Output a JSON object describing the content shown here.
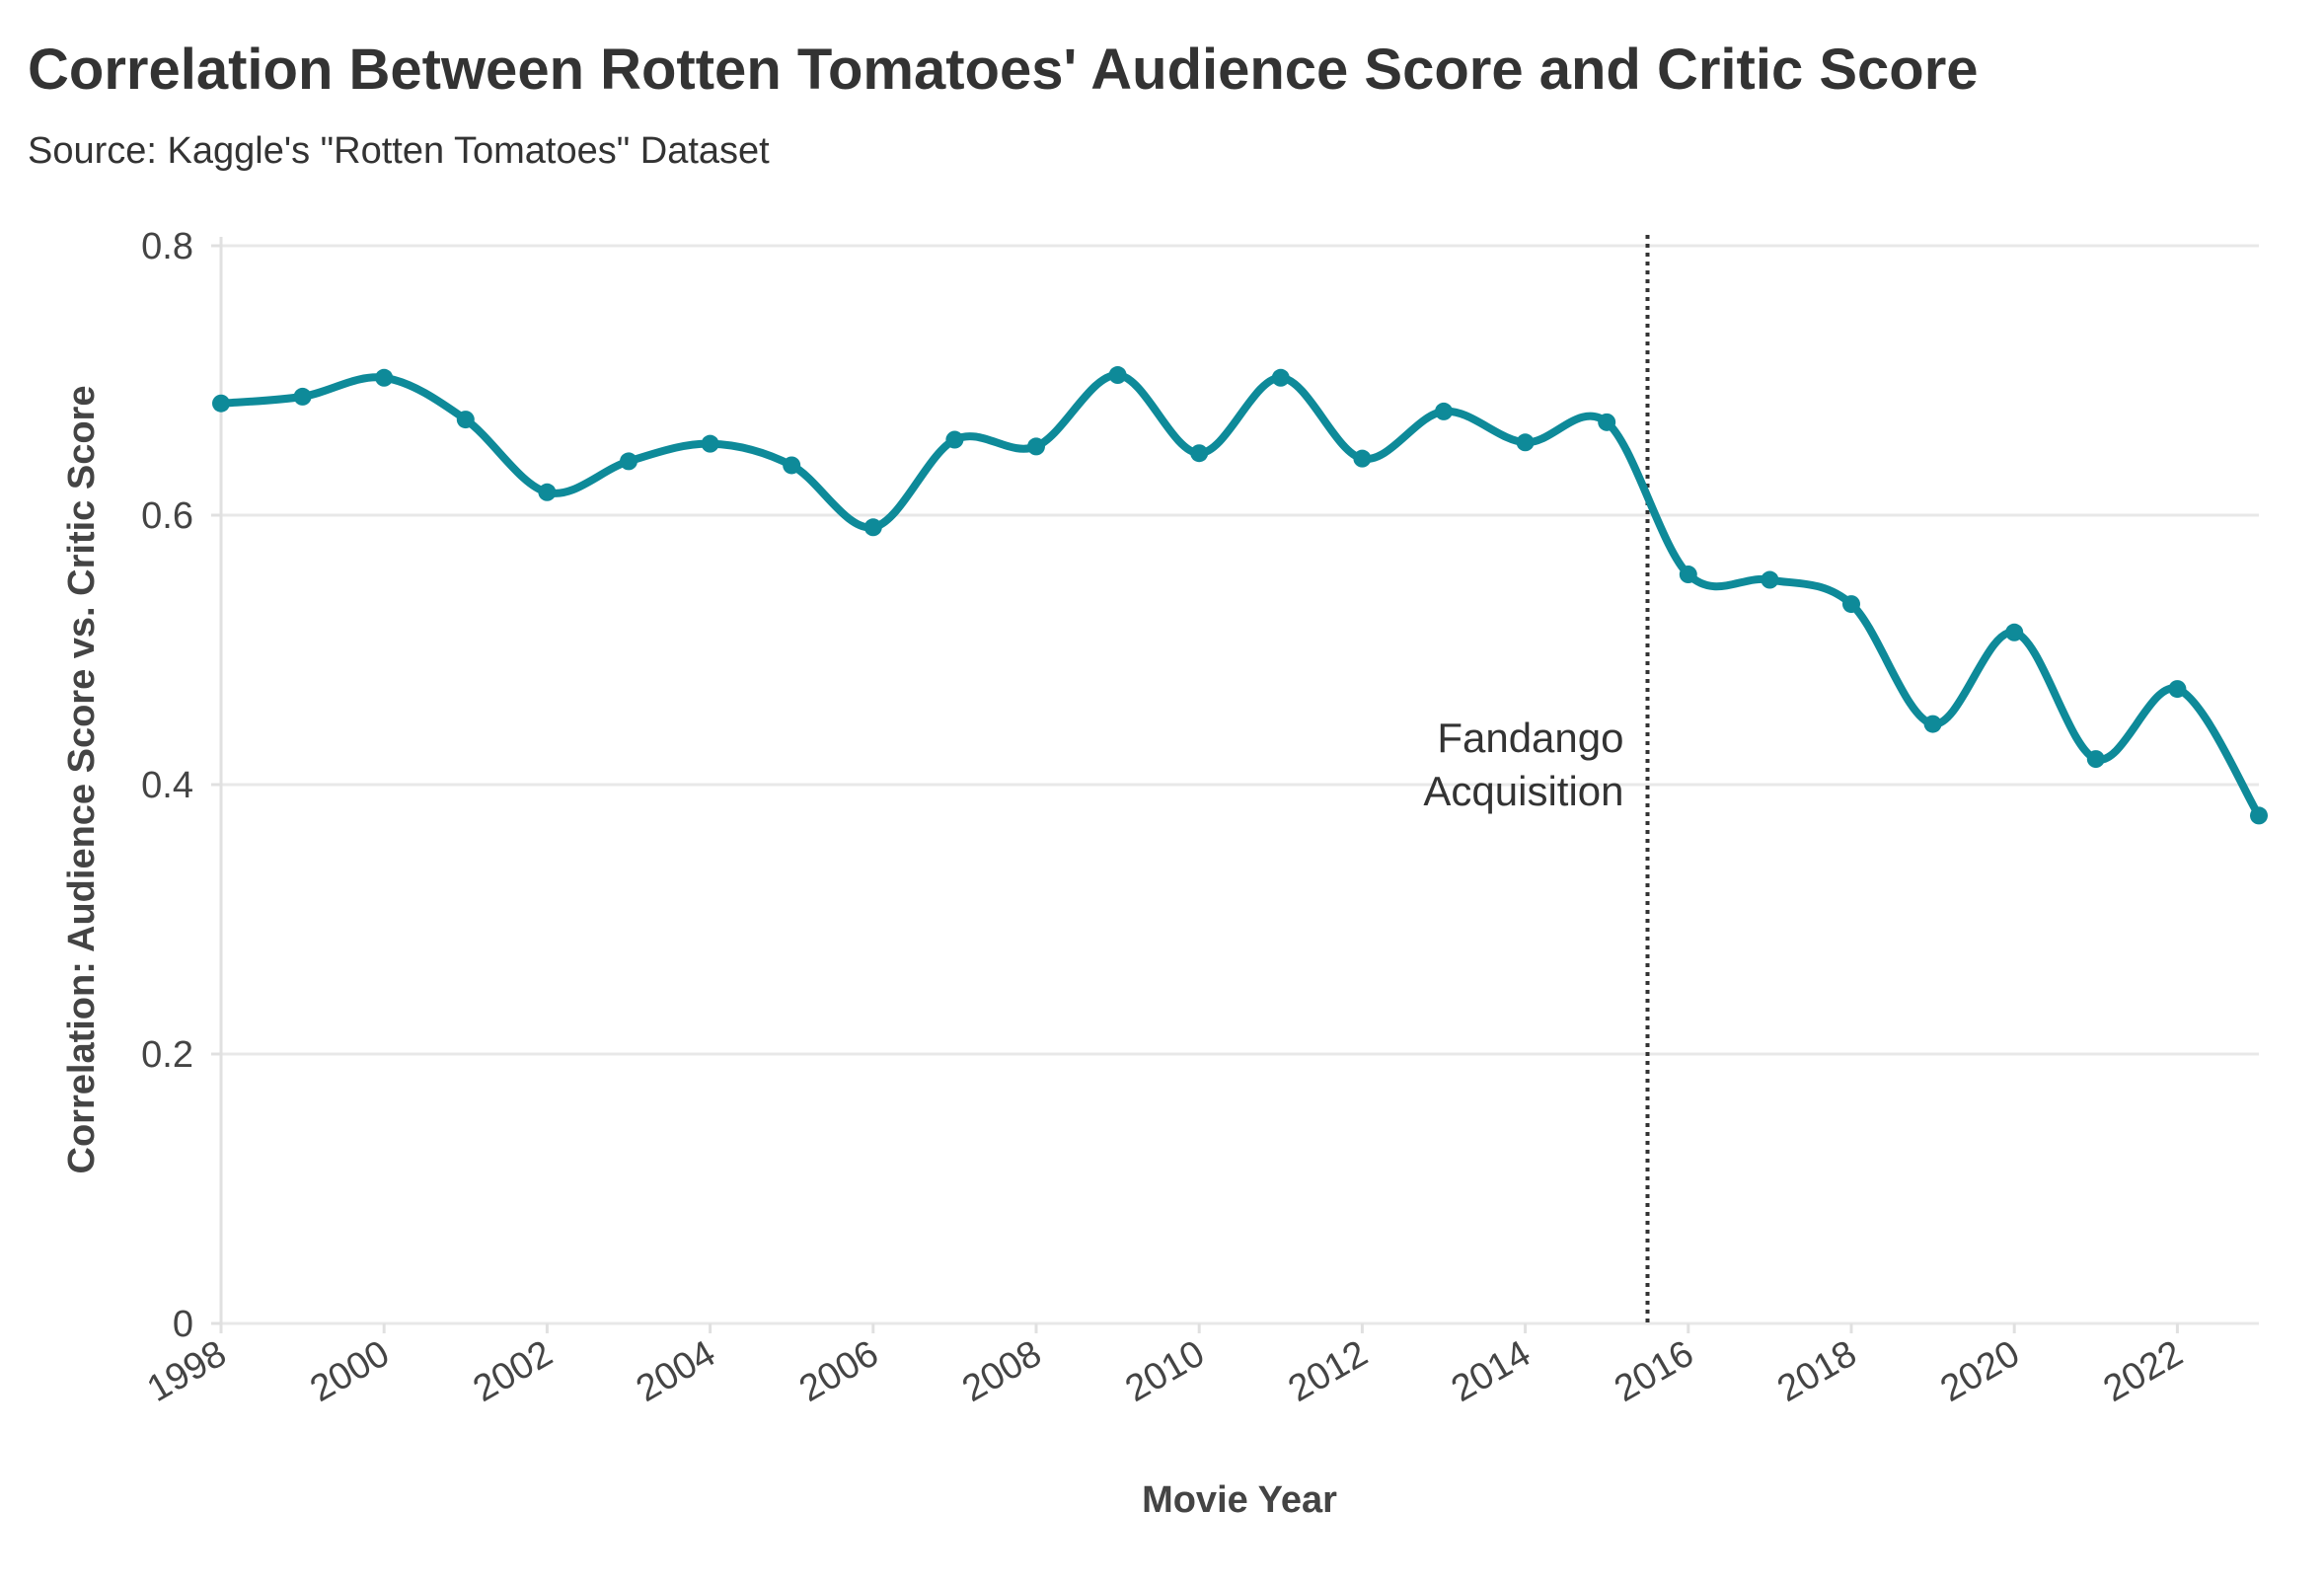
{
  "chart_data": {
    "type": "line",
    "title": "Correlation Between Rotten Tomatoes' Audience Score and Critic Score",
    "subtitle": "Source: Kaggle's \"Rotten Tomatoes\" Dataset",
    "xlabel": "Movie Year",
    "ylabel": "Correlation: Audience Score vs. Critic Score",
    "xlim": [
      1998,
      2023
    ],
    "ylim": [
      0,
      0.8
    ],
    "x_ticks": [
      "1998",
      "2000",
      "2002",
      "2004",
      "2006",
      "2008",
      "2010",
      "2012",
      "2014",
      "2016",
      "2018",
      "2020",
      "2022"
    ],
    "y_ticks": [
      "0",
      "0.2",
      "0.4",
      "0.6",
      "0.8"
    ],
    "grid": "horizontal",
    "line_color": "#0e8a99",
    "x": [
      1998,
      1999,
      2000,
      2001,
      2002,
      2003,
      2004,
      2005,
      2006,
      2007,
      2008,
      2009,
      2010,
      2011,
      2012,
      2013,
      2014,
      2015,
      2016,
      2017,
      2018,
      2019,
      2020,
      2021,
      2022,
      2023
    ],
    "values": [
      0.683,
      0.688,
      0.702,
      0.671,
      0.617,
      0.64,
      0.653,
      0.637,
      0.591,
      0.656,
      0.651,
      0.704,
      0.646,
      0.702,
      0.642,
      0.677,
      0.654,
      0.669,
      0.556,
      0.552,
      0.534,
      0.445,
      0.513,
      0.419,
      0.471,
      0.377
    ],
    "annotation": {
      "x": 2015.5,
      "line1": "Fandango",
      "line2": "Acquisition"
    }
  }
}
